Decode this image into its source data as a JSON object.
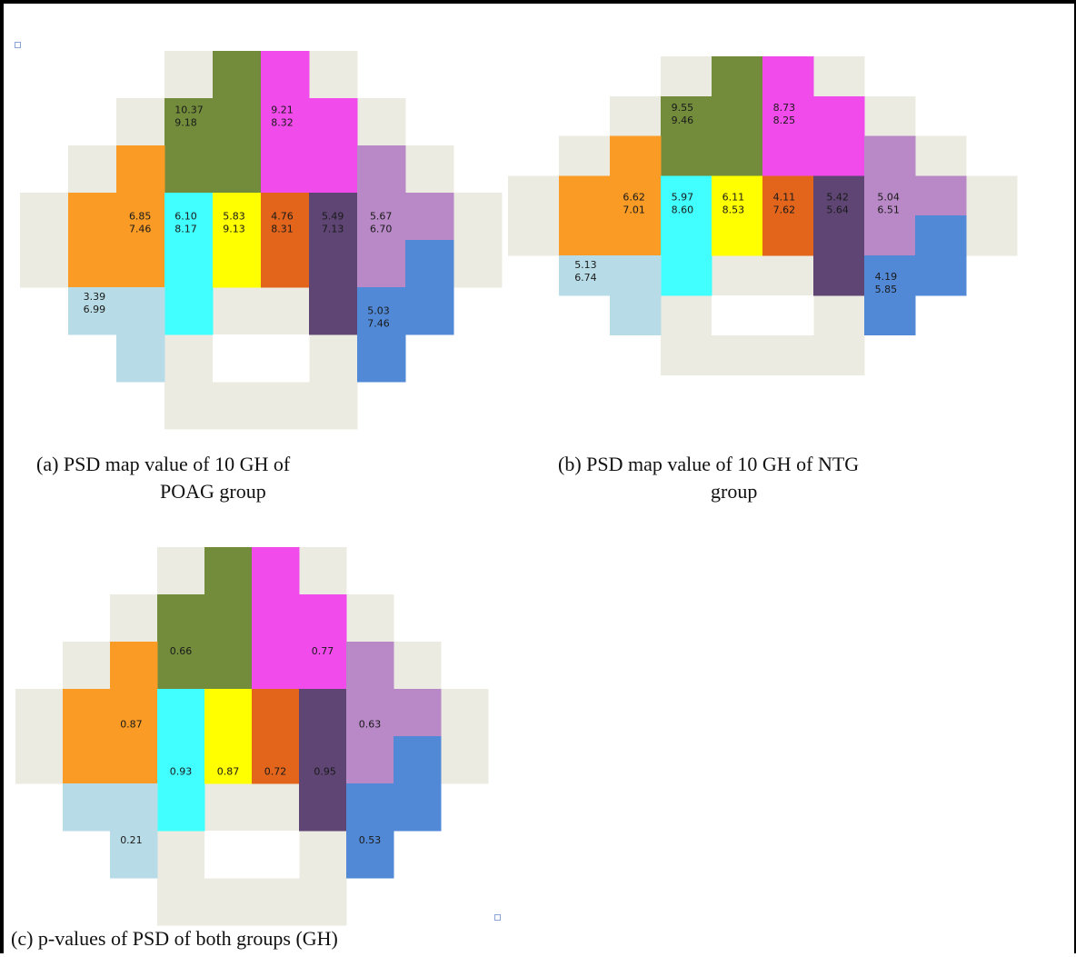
{
  "figure": {
    "colors": {
      "background": "#ffffff",
      "frame": "#000000",
      "grid_cell": "#ecebe1",
      "hole": "#ffffff",
      "sectors": {
        "green": "#728c3b",
        "magenta": "#f14ceb",
        "orange": "#f99b25",
        "cyan": "#42ffff",
        "yellow": "#ffff00",
        "dark_orange": "#e2651b",
        "dark_purple": "#5e4574",
        "lavender": "#b889c6",
        "light_blue": "#b8dce7",
        "blue": "#5189d7"
      }
    },
    "panels": [
      {
        "id": "a",
        "caption_lines": [
          "(a)   PSD map value of 10 GH of",
          "POAG group"
        ],
        "values": {
          "green": [
            "10.37",
            "9.18"
          ],
          "magenta": [
            "9.21",
            "8.32"
          ],
          "orange": [
            "6.85",
            "7.46"
          ],
          "cyan": [
            "6.10",
            "8.17"
          ],
          "yellow": [
            "5.83",
            "9.13"
          ],
          "dark_orange": [
            "4.76",
            "8.31"
          ],
          "dark_purple": [
            "5.49",
            "7.13"
          ],
          "lavender": [
            "5.67",
            "6.70"
          ],
          "light_blue": [
            "3.39",
            "6.99"
          ],
          "blue": [
            "5.03",
            "7.46"
          ]
        }
      },
      {
        "id": "b",
        "caption_lines": [
          "(b) PSD map value of 10 GH of NTG",
          "group"
        ],
        "values": {
          "green": [
            "9.55",
            "9.46"
          ],
          "magenta": [
            "8.73",
            "8.25"
          ],
          "orange": [
            "6.62",
            "7.01"
          ],
          "cyan": [
            "5.97",
            "8.60"
          ],
          "yellow": [
            "6.11",
            "8.53"
          ],
          "dark_orange": [
            "4.11",
            "7.62"
          ],
          "dark_purple": [
            "5.42",
            "5.64"
          ],
          "lavender": [
            "5.04",
            "6.51"
          ],
          "light_blue": [
            "5.13",
            "6.74"
          ],
          "blue": [
            "4.19",
            "5.85"
          ]
        }
      },
      {
        "id": "c",
        "caption_lines": [
          "(c) p-values of PSD of both groups (GH)"
        ],
        "values": {
          "green": [
            "0.66"
          ],
          "magenta": [
            "0.77"
          ],
          "orange": [
            "0.87"
          ],
          "cyan": [
            "0.93"
          ],
          "yellow": [
            "0.87"
          ],
          "dark_orange": [
            "0.72"
          ],
          "dark_purple": [
            "0.95"
          ],
          "lavender": [
            "0.63"
          ],
          "light_blue": [
            "0.21"
          ],
          "blue": [
            "0.53"
          ]
        }
      }
    ]
  }
}
